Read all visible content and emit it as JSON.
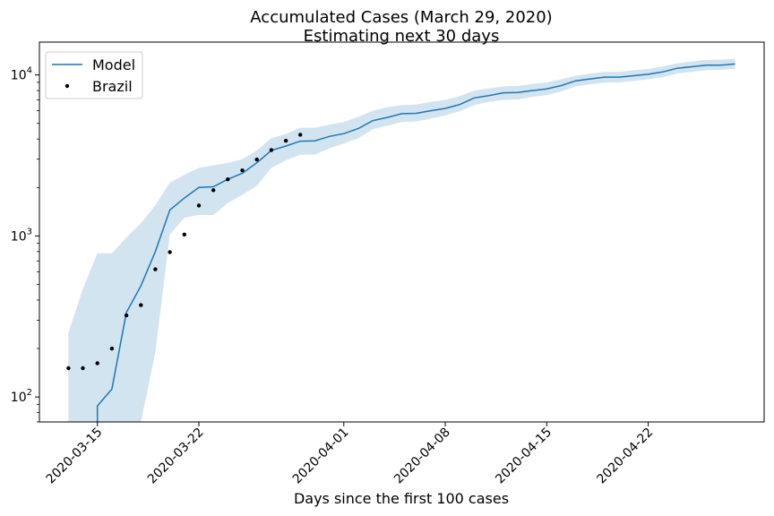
{
  "chart_data": {
    "type": "line",
    "title": "Accumulated Cases (March 29, 2020)",
    "subtitle": "Estimating next 30 days",
    "xlabel": "Days since the first 100 cases",
    "ylabel": "",
    "y_scale": "log",
    "ylim": [
      70,
      16000
    ],
    "xlim": [
      "2020-03-11",
      "2020-04-30"
    ],
    "x_ticks": [
      "2020-03-15",
      "2020-03-22",
      "2020-04-01",
      "2020-04-08",
      "2020-04-15",
      "2020-04-22"
    ],
    "y_ticks": [
      {
        "value": 100,
        "base": "10",
        "exp": "2"
      },
      {
        "value": 1000,
        "base": "10",
        "exp": "3"
      },
      {
        "value": 10000,
        "base": "10",
        "exp": "4"
      }
    ],
    "grid": false,
    "legend_position": "top-left",
    "series": [
      {
        "name": "Model",
        "kind": "line",
        "color": "#1f77b4",
        "points": [
          [
            "2020-03-15",
            88
          ],
          [
            "2020-03-16",
            112
          ],
          [
            "2020-03-17",
            335
          ],
          [
            "2020-03-18",
            490
          ],
          [
            "2020-03-19",
            800
          ],
          [
            "2020-03-20",
            1450
          ],
          [
            "2020-03-21",
            1720
          ],
          [
            "2020-03-22",
            2000
          ],
          [
            "2020-03-23",
            2020
          ],
          [
            "2020-03-24",
            2250
          ],
          [
            "2020-03-25",
            2450
          ],
          [
            "2020-03-26",
            2850
          ],
          [
            "2020-03-27",
            3400
          ],
          [
            "2020-03-28",
            3620
          ],
          [
            "2020-03-29",
            3880
          ],
          [
            "2020-03-30",
            3900
          ],
          [
            "2020-03-31",
            4150
          ],
          [
            "2020-04-01",
            4320
          ],
          [
            "2020-04-02",
            4650
          ],
          [
            "2020-04-03",
            5200
          ],
          [
            "2020-04-04",
            5450
          ],
          [
            "2020-04-05",
            5750
          ],
          [
            "2020-04-06",
            5780
          ],
          [
            "2020-04-07",
            6000
          ],
          [
            "2020-04-08",
            6200
          ],
          [
            "2020-04-09",
            6550
          ],
          [
            "2020-04-10",
            7200
          ],
          [
            "2020-04-11",
            7450
          ],
          [
            "2020-04-12",
            7750
          ],
          [
            "2020-04-13",
            7780
          ],
          [
            "2020-04-14",
            8000
          ],
          [
            "2020-04-15",
            8200
          ],
          [
            "2020-04-16",
            8600
          ],
          [
            "2020-04-17",
            9200
          ],
          [
            "2020-04-18",
            9450
          ],
          [
            "2020-04-19",
            9700
          ],
          [
            "2020-04-20",
            9700
          ],
          [
            "2020-04-21",
            9900
          ],
          [
            "2020-04-22",
            10100
          ],
          [
            "2020-04-23",
            10450
          ],
          [
            "2020-04-24",
            11000
          ],
          [
            "2020-04-25",
            11250
          ],
          [
            "2020-04-26",
            11500
          ],
          [
            "2020-04-27",
            11500
          ],
          [
            "2020-04-28",
            11700
          ]
        ]
      },
      {
        "name": "Brazil",
        "kind": "scatter",
        "color": "#000000",
        "points": [
          [
            "2020-03-13",
            151
          ],
          [
            "2020-03-14",
            151
          ],
          [
            "2020-03-15",
            162
          ],
          [
            "2020-03-16",
            200
          ],
          [
            "2020-03-17",
            321
          ],
          [
            "2020-03-18",
            372
          ],
          [
            "2020-03-19",
            621
          ],
          [
            "2020-03-20",
            793
          ],
          [
            "2020-03-21",
            1021
          ],
          [
            "2020-03-22",
            1546
          ],
          [
            "2020-03-23",
            1924
          ],
          [
            "2020-03-24",
            2247
          ],
          [
            "2020-03-25",
            2554
          ],
          [
            "2020-03-26",
            2985
          ],
          [
            "2020-03-27",
            3417
          ],
          [
            "2020-03-28",
            3904
          ],
          [
            "2020-03-29",
            4256
          ]
        ]
      }
    ],
    "band": {
      "color": "#1f77b4",
      "opacity": 0.2,
      "points": [
        [
          "2020-03-13",
          10,
          250
        ],
        [
          "2020-03-14",
          10,
          470
        ],
        [
          "2020-03-15",
          10,
          780
        ],
        [
          "2020-03-16",
          10,
          780
        ],
        [
          "2020-03-17",
          10,
          980
        ],
        [
          "2020-03-18",
          10,
          1200
        ],
        [
          "2020-03-19",
          190,
          1550
        ],
        [
          "2020-03-20",
          1020,
          2150
        ],
        [
          "2020-03-21",
          1300,
          2400
        ],
        [
          "2020-03-22",
          1350,
          2650
        ],
        [
          "2020-03-23",
          1350,
          2750
        ],
        [
          "2020-03-24",
          1600,
          2850
        ],
        [
          "2020-03-25",
          1800,
          3000
        ],
        [
          "2020-03-26",
          2050,
          3400
        ],
        [
          "2020-03-27",
          2650,
          4050
        ],
        [
          "2020-03-28",
          2950,
          4300
        ],
        [
          "2020-03-29",
          3200,
          4700
        ],
        [
          "2020-03-30",
          3200,
          4700
        ],
        [
          "2020-03-31",
          3500,
          4900
        ],
        [
          "2020-04-01",
          3750,
          5100
        ],
        [
          "2020-04-02",
          4050,
          5500
        ],
        [
          "2020-04-03",
          4600,
          6000
        ],
        [
          "2020-04-04",
          4850,
          6300
        ],
        [
          "2020-04-05",
          5100,
          6500
        ],
        [
          "2020-04-06",
          5150,
          6550
        ],
        [
          "2020-04-07",
          5350,
          6800
        ],
        [
          "2020-04-08",
          5600,
          7000
        ],
        [
          "2020-04-09",
          5950,
          7400
        ],
        [
          "2020-04-10",
          6500,
          8000
        ],
        [
          "2020-04-11",
          6800,
          8250
        ],
        [
          "2020-04-12",
          7000,
          8500
        ],
        [
          "2020-04-13",
          7050,
          8550
        ],
        [
          "2020-04-14",
          7300,
          8800
        ],
        [
          "2020-04-15",
          7500,
          9000
        ],
        [
          "2020-04-16",
          7900,
          9400
        ],
        [
          "2020-04-17",
          8500,
          9900
        ],
        [
          "2020-04-18",
          8750,
          10200
        ],
        [
          "2020-04-19",
          8950,
          10450
        ],
        [
          "2020-04-20",
          9000,
          10450
        ],
        [
          "2020-04-21",
          9200,
          10700
        ],
        [
          "2020-04-22",
          9400,
          10900
        ],
        [
          "2020-04-23",
          9700,
          11300
        ],
        [
          "2020-04-24",
          10200,
          11800
        ],
        [
          "2020-04-25",
          10450,
          12100
        ],
        [
          "2020-04-26",
          10700,
          12400
        ],
        [
          "2020-04-27",
          10750,
          12450
        ],
        [
          "2020-04-28",
          10950,
          12600
        ]
      ]
    }
  }
}
